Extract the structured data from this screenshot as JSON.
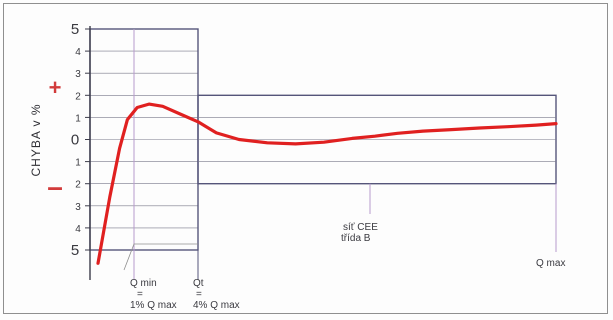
{
  "chart_data": {
    "type": "line",
    "title": "",
    "ylabel": "CHYBA v %",
    "sign_plus": "+",
    "sign_minus": "–",
    "y_ticks": [
      {
        "label": "5",
        "value": 5
      },
      {
        "label": "4",
        "value": 4
      },
      {
        "label": "3",
        "value": 3
      },
      {
        "label": "2",
        "value": 2
      },
      {
        "label": "1",
        "value": 1
      },
      {
        "label": "0",
        "value": 0
      },
      {
        "label": "1",
        "value": -1
      },
      {
        "label": "2",
        "value": -2
      },
      {
        "label": "3",
        "value": -3
      },
      {
        "label": "4",
        "value": -4
      },
      {
        "label": "5",
        "value": -5
      }
    ],
    "ylim": [
      -5,
      5
    ],
    "x_markers": [
      {
        "name": "Qmin",
        "line1": "Q min",
        "line2": "=",
        "line3": "1% Q max"
      },
      {
        "name": "Qt",
        "line1": "Qt",
        "line2": "=",
        "line3": "4% Q max"
      },
      {
        "name": "Qmax",
        "line1": "Q max"
      }
    ],
    "annotation": {
      "line1": "síť CEE",
      "line2": "třída B"
    },
    "tolerance_bands": [
      {
        "from": "start",
        "to": "Qt",
        "lower": -5,
        "upper": 5
      },
      {
        "from": "Qt",
        "to": "Qmax",
        "lower": -2,
        "upper": 2
      }
    ],
    "series": [
      {
        "color": "#e02020",
        "points": [
          [
            0.0,
            -5.6
          ],
          [
            0.03,
            -2.6
          ],
          [
            0.055,
            -0.4
          ],
          [
            0.075,
            0.9
          ],
          [
            0.1,
            1.45
          ],
          [
            0.13,
            1.6
          ],
          [
            0.165,
            1.5
          ],
          [
            0.21,
            1.15
          ],
          [
            0.255,
            0.8
          ],
          [
            0.32,
            0.3
          ],
          [
            0.4,
            0.0
          ],
          [
            0.5,
            -0.15
          ],
          [
            0.6,
            -0.2
          ],
          [
            0.7,
            -0.12
          ],
          [
            0.8,
            0.05
          ],
          [
            0.88,
            0.15
          ],
          [
            0.96,
            0.28
          ],
          [
            1.05,
            0.38
          ],
          [
            1.15,
            0.45
          ],
          [
            1.25,
            0.52
          ],
          [
            1.35,
            0.58
          ],
          [
            1.45,
            0.65
          ],
          [
            1.52,
            0.72
          ]
        ]
      }
    ]
  },
  "colors": {
    "curve": "#e02020",
    "sign": "#d23b3b",
    "grid": "#7a7a8c",
    "band": "#55557a",
    "marker_line": "#b89acd",
    "axis": "#3c3c4a"
  }
}
